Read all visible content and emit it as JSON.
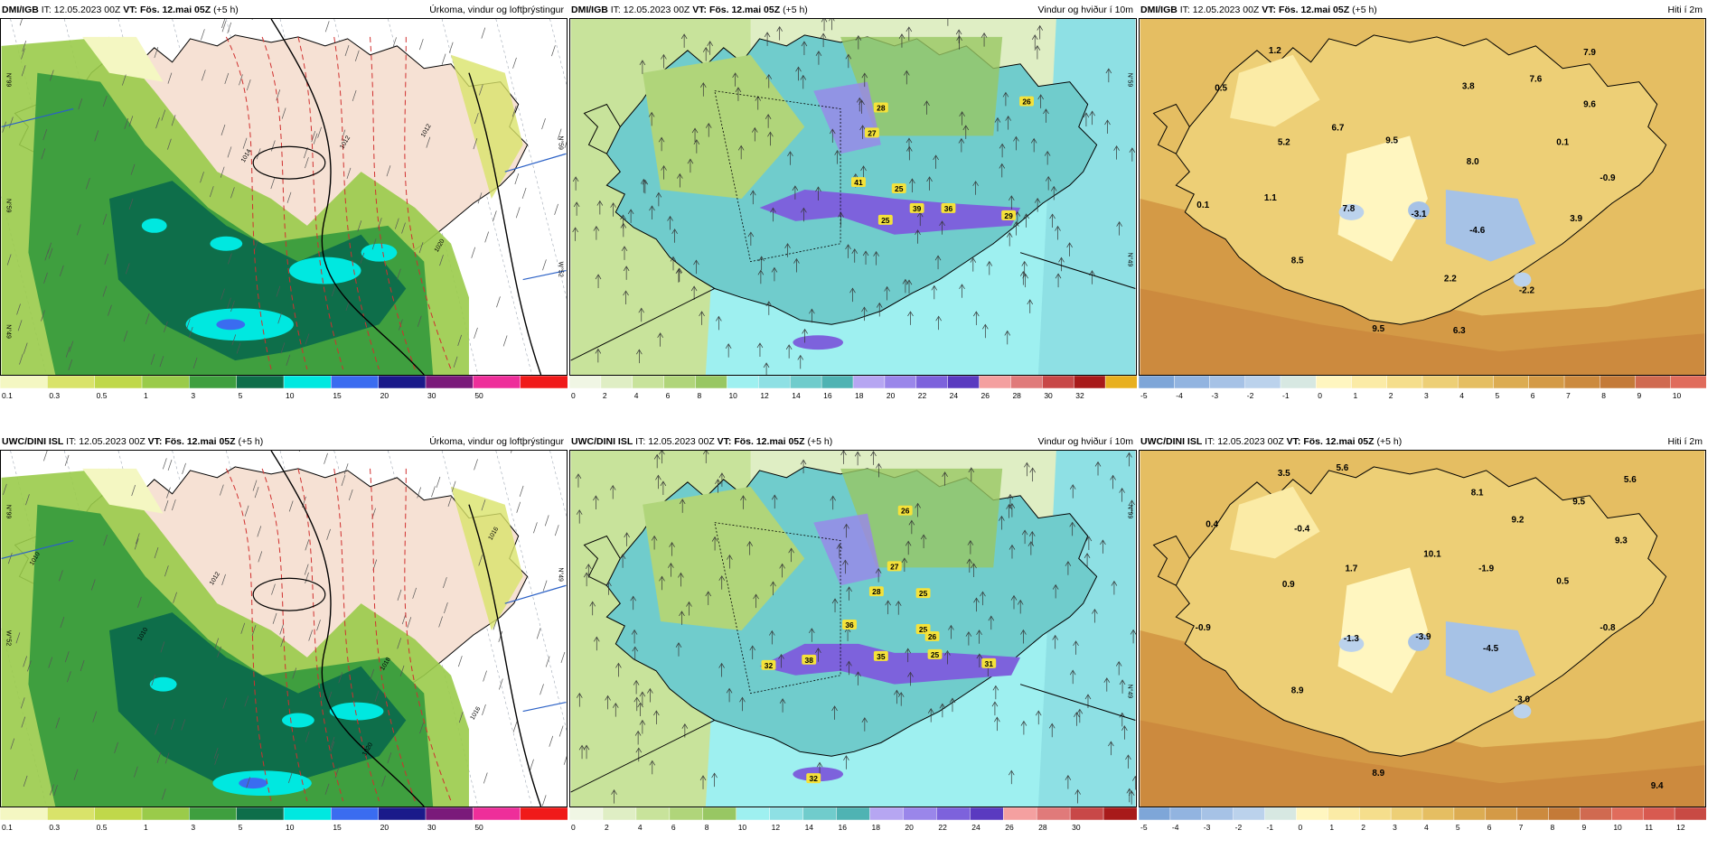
{
  "panels": [
    {
      "id": "r0c0",
      "model": "DMI/IGB",
      "it_label": "IT:",
      "it": "12.05.2023 00Z",
      "vt_label": "VT:",
      "vt": "Fös. 12.mai 05Z",
      "lead": "(+5 h)",
      "field": "Úrkoma, vindur og loftþrýstingur",
      "kind": "precip",
      "isobars": [
        "1012",
        "1014",
        "1012",
        "1020"
      ],
      "side_labels": [
        "N°99",
        "N°59",
        "N°59",
        "W°52",
        "N°49"
      ],
      "colorbar": {
        "ticks": [
          "0.1",
          "0.3",
          "0.5",
          "1",
          "3",
          "5",
          "10",
          "15",
          "20",
          "30",
          "50"
        ],
        "colors": [
          "#f4f7c2",
          "#d9e36a",
          "#c0d84a",
          "#9acb4a",
          "#3f9f3f",
          "#0e6e4a",
          "#00e8e0",
          "#3a6cf0",
          "#1a1a8a",
          "#7a1a7a",
          "#ee2e9a",
          "#f01a1a"
        ]
      }
    },
    {
      "id": "r0c1",
      "model": "DMI/IGB",
      "it_label": "IT:",
      "it": "12.05.2023 00Z",
      "vt_label": "VT:",
      "vt": "Fös. 12.mai 05Z",
      "lead": "(+5 h)",
      "field": "Vindur og hviður í 10m",
      "kind": "wind",
      "gusts": [
        "28",
        "27",
        "41",
        "25",
        "39",
        "25",
        "36",
        "29",
        "26"
      ],
      "side_labels": [
        "N°59",
        "N°49"
      ],
      "colorbar": {
        "ticks": [
          "0",
          "2",
          "4",
          "6",
          "8",
          "10",
          "12",
          "14",
          "16",
          "18",
          "20",
          "22",
          "24",
          "26",
          "28",
          "30",
          "32"
        ],
        "colors": [
          "#f0f6e4",
          "#dfeec4",
          "#c8e39b",
          "#b0d57a",
          "#98c763",
          "#9ef0f0",
          "#8ee0e4",
          "#70cccc",
          "#4fb3b3",
          "#b6a6f2",
          "#9a86ea",
          "#7d62dc",
          "#5a3ac0",
          "#f4a0a0",
          "#e07a7a",
          "#c84848",
          "#a81a1a",
          "#e8b020"
        ]
      }
    },
    {
      "id": "r0c2",
      "model": "DMI/IGB",
      "it_label": "IT:",
      "it": "12.05.2023 00Z",
      "vt_label": "VT:",
      "vt": "Fös. 12.mai 05Z",
      "lead": "(+5 h)",
      "field": "Hiti í 2m",
      "kind": "temp",
      "temps": [
        "1.2",
        "7.9",
        "0.5",
        "3.8",
        "7.6",
        "9.6",
        "6.7",
        "5.2",
        "9.5",
        "0.1",
        "8.0",
        "-0.9",
        "1.1",
        "0.1",
        "7.8",
        "-3.1",
        "-4.6",
        "3.9",
        "8.5",
        "2.2",
        "-2.2",
        "9.5",
        "6.3"
      ],
      "colorbar": {
        "ticks": [
          "-5",
          "-4",
          "-3",
          "-2",
          "-1",
          "0",
          "1",
          "2",
          "3",
          "4",
          "5",
          "6",
          "7",
          "8",
          "9",
          "10"
        ],
        "colors": [
          "#7ea6d8",
          "#92b4e0",
          "#a6c2e6",
          "#bbd2ec",
          "#d7e8e2",
          "#fff6c0",
          "#fbeba6",
          "#f5de8c",
          "#edcf76",
          "#e5be62",
          "#dcac52",
          "#d49a46",
          "#cc8a3e",
          "#c47a38",
          "#d06a50",
          "#e06c5c"
        ]
      }
    },
    {
      "id": "r1c0",
      "model": "UWC/DINI ISL",
      "it_label": "IT:",
      "it": "12.05.2023 00Z",
      "vt_label": "VT:",
      "vt": "Fös. 12.mai 05Z",
      "lead": "(+5 h)",
      "field": "Úrkoma, vindur og loftþrýstingur",
      "kind": "precip",
      "isobars": [
        "1010",
        "1010",
        "1012",
        "1016",
        "1018",
        "1020",
        "1016"
      ],
      "side_labels": [
        "N°99",
        "N°49",
        "W°52"
      ],
      "colorbar": {
        "ticks": [
          "0.1",
          "0.3",
          "0.5",
          "1",
          "3",
          "5",
          "10",
          "15",
          "20",
          "30",
          "50"
        ],
        "colors": [
          "#f4f7c2",
          "#d9e36a",
          "#c0d84a",
          "#9acb4a",
          "#3f9f3f",
          "#0e6e4a",
          "#00e8e0",
          "#3a6cf0",
          "#1a1a8a",
          "#7a1a7a",
          "#ee2e9a",
          "#f01a1a"
        ]
      }
    },
    {
      "id": "r1c1",
      "model": "UWC/DINI ISL",
      "it_label": "IT:",
      "it": "12.05.2023 00Z",
      "vt_label": "VT:",
      "vt": "Fös. 12.mai 05Z",
      "lead": "(+5 h)",
      "field": "Vindur og hviður í 10m",
      "kind": "wind",
      "gusts": [
        "26",
        "27",
        "28",
        "25",
        "36",
        "25",
        "26",
        "32",
        "38",
        "35",
        "31",
        "25",
        "32"
      ],
      "side_labels": [
        "N°99",
        "N°49"
      ],
      "colorbar": {
        "ticks": [
          "0",
          "2",
          "4",
          "6",
          "8",
          "10",
          "12",
          "14",
          "16",
          "18",
          "20",
          "22",
          "24",
          "26",
          "28",
          "30"
        ],
        "colors": [
          "#f0f6e4",
          "#dfeec4",
          "#c8e39b",
          "#b0d57a",
          "#98c763",
          "#9ef0f0",
          "#8ee0e4",
          "#70cccc",
          "#4fb3b3",
          "#b6a6f2",
          "#9a86ea",
          "#7d62dc",
          "#5a3ac0",
          "#f4a0a0",
          "#e07a7a",
          "#c84848",
          "#a81a1a"
        ]
      }
    },
    {
      "id": "r1c2",
      "model": "UWC/DINI ISL",
      "it_label": "IT:",
      "it": "12.05.2023 00Z",
      "vt_label": "VT:",
      "vt": "Fös. 12.mai 05Z",
      "lead": "(+5 h)",
      "field": "Hiti í 2m",
      "kind": "temp",
      "temps": [
        "3.5",
        "5.6",
        "5.6",
        "8.1",
        "9.5",
        "0.4",
        "-0.4",
        "9.2",
        "9.3",
        "10.1",
        "1.7",
        "-1.9",
        "0.5",
        "0.9",
        "-0.9",
        "-1.3",
        "-3.9",
        "-4.5",
        "-0.8",
        "8.9",
        "-3.0",
        "8.9",
        "9.4"
      ],
      "colorbar": {
        "ticks": [
          "-5",
          "-4",
          "-3",
          "-2",
          "-1",
          "0",
          "1",
          "2",
          "3",
          "4",
          "5",
          "6",
          "7",
          "8",
          "9",
          "10",
          "11",
          "12"
        ],
        "colors": [
          "#7ea6d8",
          "#92b4e0",
          "#a6c2e6",
          "#bbd2ec",
          "#d7e8e2",
          "#fff6c0",
          "#fbeba6",
          "#f5de8c",
          "#edcf76",
          "#e5be62",
          "#dcac52",
          "#d49a46",
          "#cc8a3e",
          "#c47a38",
          "#d06a50",
          "#e06c5c",
          "#d85a50",
          "#c84a44"
        ]
      }
    }
  ]
}
